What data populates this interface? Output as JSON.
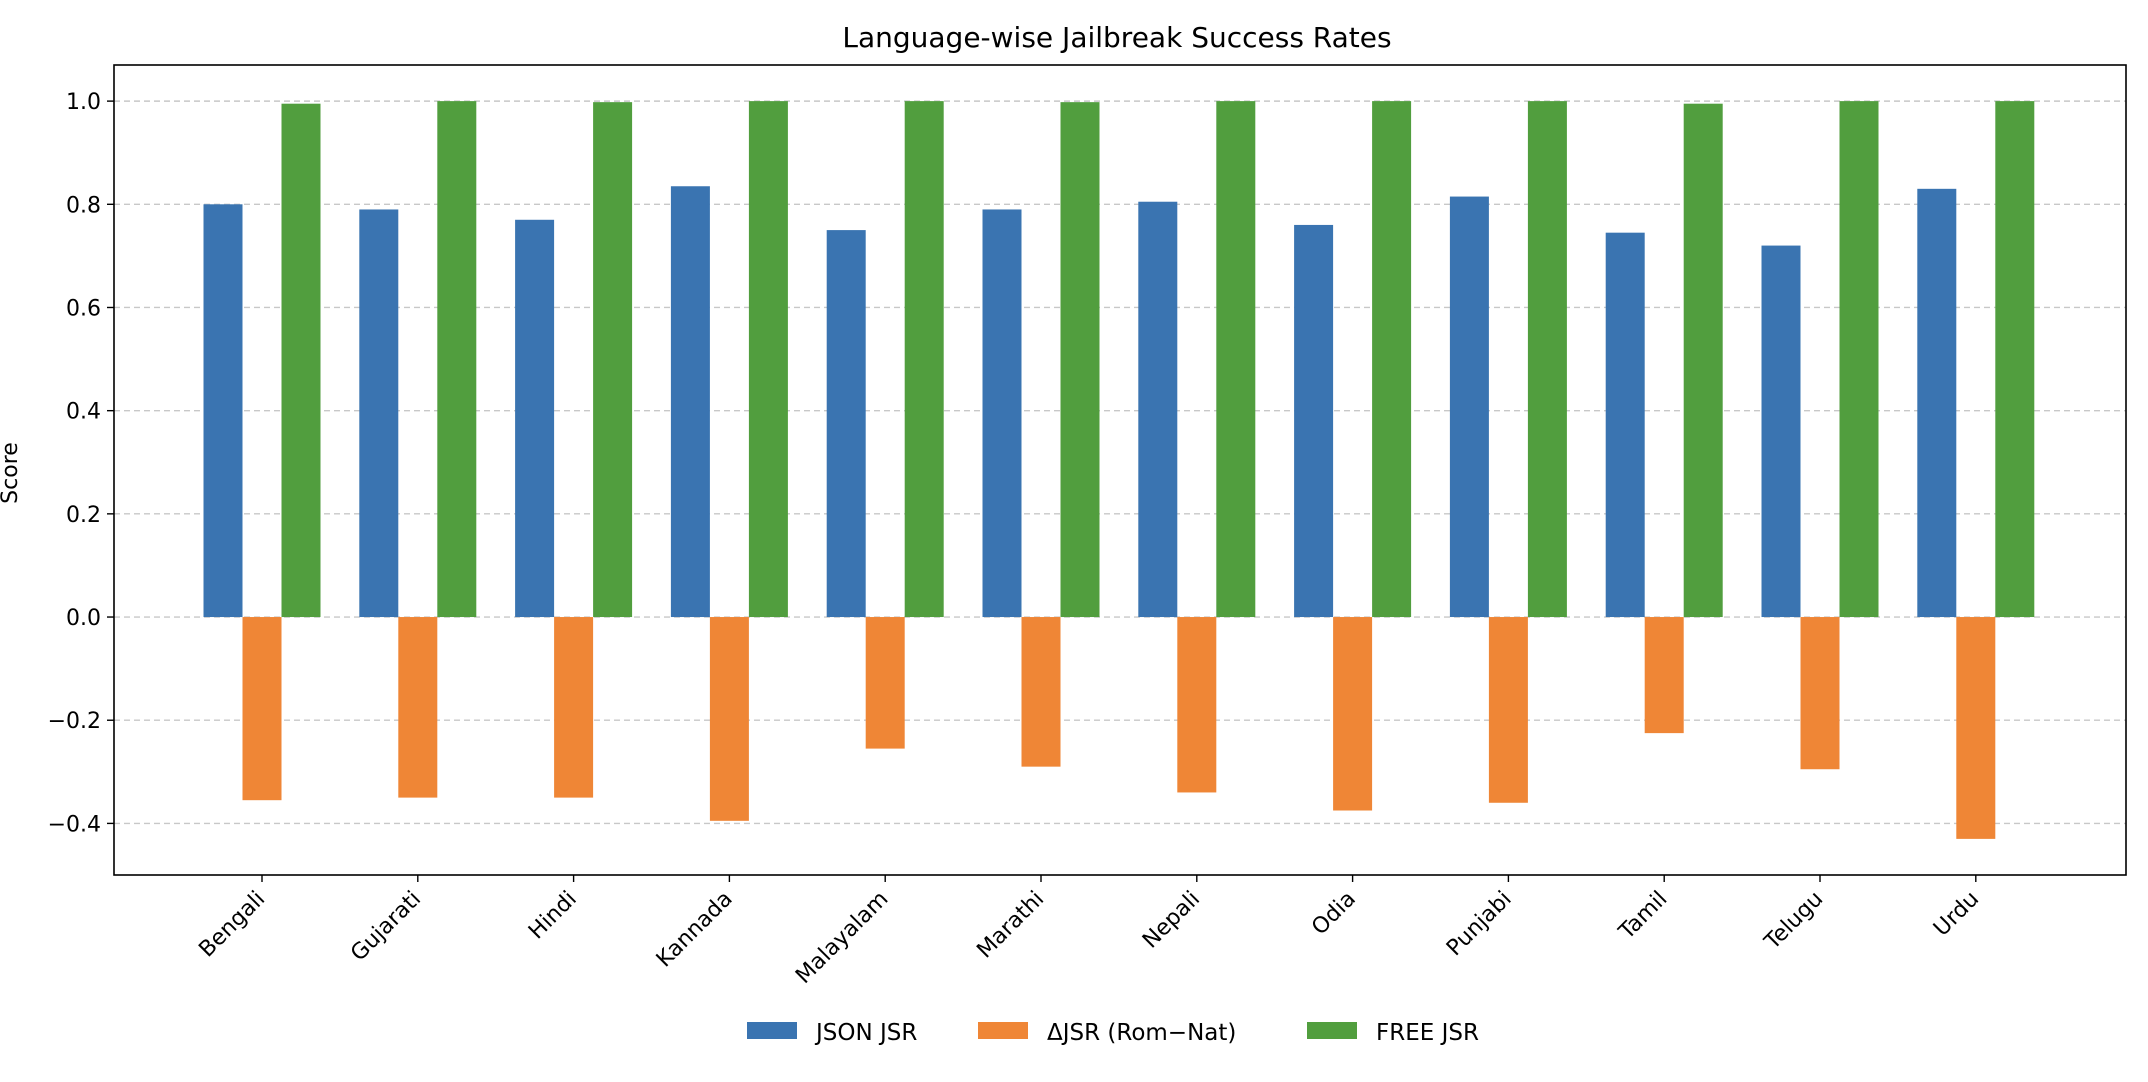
{
  "chart_data": {
    "type": "bar",
    "title": "Language-wise Jailbreak Success Rates",
    "xlabel": "",
    "ylabel": "Score",
    "ylim": [
      -0.5,
      1.07
    ],
    "yticks": [
      -0.4,
      -0.2,
      0.0,
      0.2,
      0.4,
      0.6,
      0.8,
      1.0
    ],
    "ytick_labels": [
      "−0.4",
      "−0.2",
      "0.0",
      "0.2",
      "0.4",
      "0.6",
      "0.8",
      "1.0"
    ],
    "grid": "y-dashed",
    "legend_position": "bottom-center",
    "categories": [
      "Bengali",
      "Gujarati",
      "Hindi",
      "Kannada",
      "Malayalam",
      "Marathi",
      "Nepali",
      "Odia",
      "Punjabi",
      "Tamil",
      "Telugu",
      "Urdu"
    ],
    "series": [
      {
        "name": "JSON JSR",
        "color": "#3a74b1",
        "values": [
          0.8,
          0.79,
          0.77,
          0.835,
          0.75,
          0.79,
          0.805,
          0.76,
          0.815,
          0.745,
          0.72,
          0.83
        ]
      },
      {
        "name": "ΔJSR (Rom−Nat)",
        "color": "#ef8636",
        "values": [
          -0.355,
          -0.35,
          -0.35,
          -0.395,
          -0.255,
          -0.29,
          -0.34,
          -0.375,
          -0.36,
          -0.225,
          -0.295,
          -0.43
        ]
      },
      {
        "name": "FREE JSR",
        "color": "#519e3e",
        "values": [
          0.995,
          1.0,
          0.998,
          1.0,
          1.0,
          0.998,
          1.0,
          1.0,
          1.0,
          0.995,
          1.0,
          1.0
        ]
      }
    ]
  }
}
